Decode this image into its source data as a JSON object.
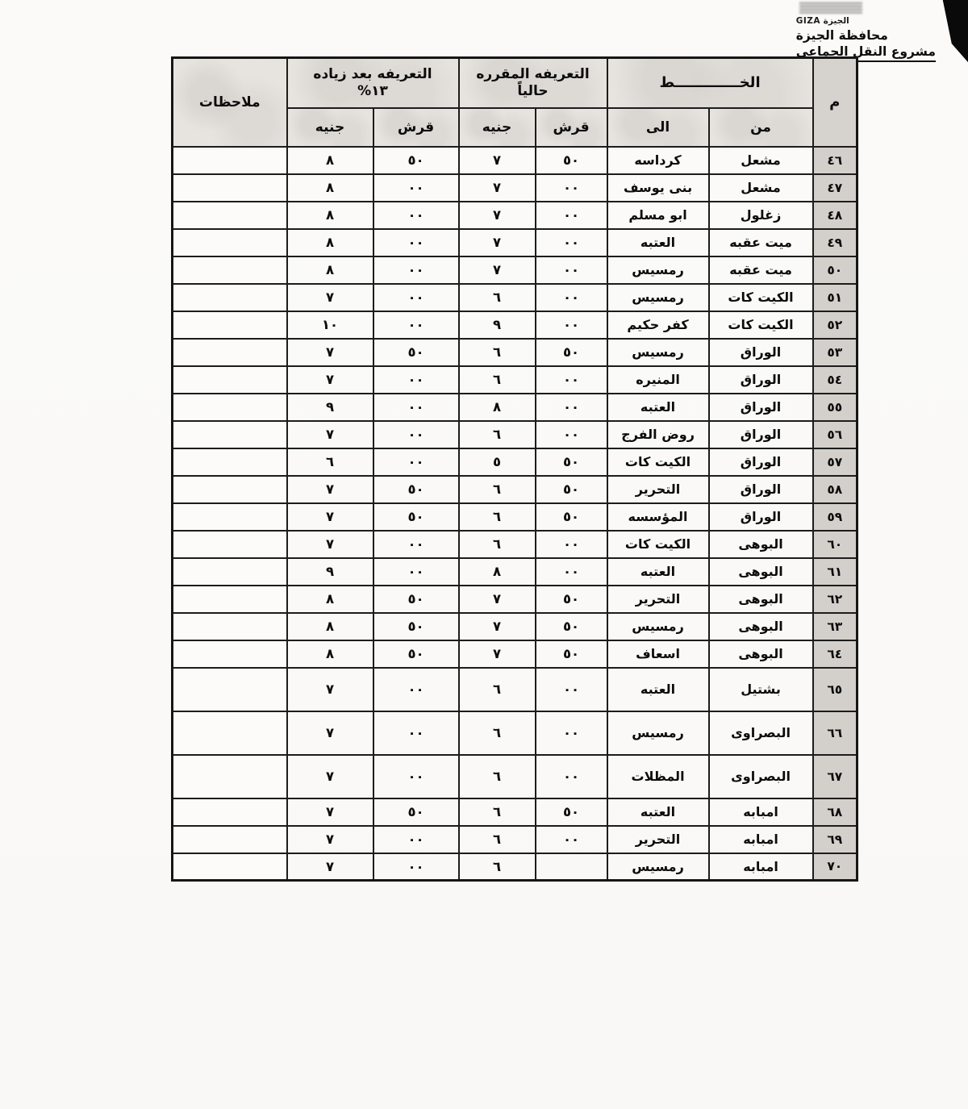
{
  "page": {
    "stamp_label": "الجيزة GIZA",
    "org_title": "محافظة الجيزة",
    "project_title": "مشروع النقل الجماعى"
  },
  "colors": {
    "paper": "#fbfaf8",
    "index_column_bg": "#d3d0cc",
    "header_bg": "#e7e4e0",
    "border": "#1c1c1c",
    "corner_artifact": "#0a0a0a"
  },
  "table": {
    "headers": {
      "num": "م",
      "line_group": "الخـــــــــــــط",
      "from": "من",
      "to": "الى",
      "current_group_line1": "التعريفه المقرره",
      "current_group_line2": "حالياً",
      "increased_group_line1": "التعريفه بعد زياده",
      "increased_group_line2": "١٣%",
      "girsh": "قرش",
      "gineh": "جنيه",
      "notes": "ملاحظات"
    },
    "rows": [
      {
        "num": "٤٦",
        "from": "مشعل",
        "to": "كرداسه",
        "cur_girsh": "٥٠",
        "cur_gineh": "٧",
        "new_girsh": "٥٠",
        "new_gineh": "٨",
        "notes": ""
      },
      {
        "num": "٤٧",
        "from": "مشعل",
        "to": "بنى يوسف",
        "cur_girsh": "٠٠",
        "cur_gineh": "٧",
        "new_girsh": "٠٠",
        "new_gineh": "٨",
        "notes": ""
      },
      {
        "num": "٤٨",
        "from": "زغلول",
        "to": "ابو مسلم",
        "cur_girsh": "٠٠",
        "cur_gineh": "٧",
        "new_girsh": "٠٠",
        "new_gineh": "٨",
        "notes": ""
      },
      {
        "num": "٤٩",
        "from": "ميت عقبه",
        "to": "العتبه",
        "cur_girsh": "٠٠",
        "cur_gineh": "٧",
        "new_girsh": "٠٠",
        "new_gineh": "٨",
        "notes": ""
      },
      {
        "num": "٥٠",
        "from": "ميت عقبه",
        "to": "رمسيس",
        "cur_girsh": "٠٠",
        "cur_gineh": "٧",
        "new_girsh": "٠٠",
        "new_gineh": "٨",
        "notes": ""
      },
      {
        "num": "٥١",
        "from": "الكيت كات",
        "to": "رمسيس",
        "cur_girsh": "٠٠",
        "cur_gineh": "٦",
        "new_girsh": "٠٠",
        "new_gineh": "٧",
        "notes": ""
      },
      {
        "num": "٥٢",
        "from": "الكيت كات",
        "to": "كفر حكيم",
        "cur_girsh": "٠٠",
        "cur_gineh": "٩",
        "new_girsh": "٠٠",
        "new_gineh": "١٠",
        "notes": ""
      },
      {
        "num": "٥٣",
        "from": "الوراق",
        "to": "رمسيس",
        "cur_girsh": "٥٠",
        "cur_gineh": "٦",
        "new_girsh": "٥٠",
        "new_gineh": "٧",
        "notes": ""
      },
      {
        "num": "٥٤",
        "from": "الوراق",
        "to": "المنيره",
        "cur_girsh": "٠٠",
        "cur_gineh": "٦",
        "new_girsh": "٠٠",
        "new_gineh": "٧",
        "notes": ""
      },
      {
        "num": "٥٥",
        "from": "الوراق",
        "to": "العتبه",
        "cur_girsh": "٠٠",
        "cur_gineh": "٨",
        "new_girsh": "٠٠",
        "new_gineh": "٩",
        "notes": ""
      },
      {
        "num": "٥٦",
        "from": "الوراق",
        "to": "روض الفرج",
        "cur_girsh": "٠٠",
        "cur_gineh": "٦",
        "new_girsh": "٠٠",
        "new_gineh": "٧",
        "notes": ""
      },
      {
        "num": "٥٧",
        "from": "الوراق",
        "to": "الكيت كات",
        "cur_girsh": "٥٠",
        "cur_gineh": "٥",
        "new_girsh": "٠٠",
        "new_gineh": "٦",
        "notes": ""
      },
      {
        "num": "٥٨",
        "from": "الوراق",
        "to": "التحرير",
        "cur_girsh": "٥٠",
        "cur_gineh": "٦",
        "new_girsh": "٥٠",
        "new_gineh": "٧",
        "notes": ""
      },
      {
        "num": "٥٩",
        "from": "الوراق",
        "to": "المؤسسه",
        "cur_girsh": "٥٠",
        "cur_gineh": "٦",
        "new_girsh": "٥٠",
        "new_gineh": "٧",
        "notes": ""
      },
      {
        "num": "٦٠",
        "from": "البوهى",
        "to": "الكيت كات",
        "cur_girsh": "٠٠",
        "cur_gineh": "٦",
        "new_girsh": "٠٠",
        "new_gineh": "٧",
        "notes": ""
      },
      {
        "num": "٦١",
        "from": "البوهى",
        "to": "العتبه",
        "cur_girsh": "٠٠",
        "cur_gineh": "٨",
        "new_girsh": "٠٠",
        "new_gineh": "٩",
        "notes": ""
      },
      {
        "num": "٦٢",
        "from": "البوهى",
        "to": "التحرير",
        "cur_girsh": "٥٠",
        "cur_gineh": "٧",
        "new_girsh": "٥٠",
        "new_gineh": "٨",
        "notes": ""
      },
      {
        "num": "٦٣",
        "from": "البوهى",
        "to": "رمسيس",
        "cur_girsh": "٥٠",
        "cur_gineh": "٧",
        "new_girsh": "٥٠",
        "new_gineh": "٨",
        "notes": ""
      },
      {
        "num": "٦٤",
        "from": "البوهى",
        "to": "اسعاف",
        "cur_girsh": "٥٠",
        "cur_gineh": "٧",
        "new_girsh": "٥٠",
        "new_gineh": "٨",
        "notes": ""
      },
      {
        "num": "٦٥",
        "from": "بشتيل",
        "to": "العتبه",
        "cur_girsh": "٠٠",
        "cur_gineh": "٦",
        "new_girsh": "٠٠",
        "new_gineh": "٧",
        "notes": "",
        "tall": true
      },
      {
        "num": "٦٦",
        "from": "البصراوى",
        "to": "رمسيس",
        "cur_girsh": "٠٠",
        "cur_gineh": "٦",
        "new_girsh": "٠٠",
        "new_gineh": "٧",
        "notes": "",
        "tall": true
      },
      {
        "num": "٦٧",
        "from": "البصراوى",
        "to": "المظلات",
        "cur_girsh": "٠٠",
        "cur_gineh": "٦",
        "new_girsh": "٠٠",
        "new_gineh": "٧",
        "notes": "",
        "tall": true
      },
      {
        "num": "٦٨",
        "from": "امبابه",
        "to": "العتبه",
        "cur_girsh": "٥٠",
        "cur_gineh": "٦",
        "new_girsh": "٥٠",
        "new_gineh": "٧",
        "notes": ""
      },
      {
        "num": "٦٩",
        "from": "امبابه",
        "to": "التحرير",
        "cur_girsh": "٠٠",
        "cur_gineh": "٦",
        "new_girsh": "٠٠",
        "new_gineh": "٧",
        "notes": ""
      },
      {
        "num": "٧٠",
        "from": "امبابه",
        "to": "رمسيس",
        "cur_girsh": "",
        "cur_gineh": "٦",
        "new_girsh": "٠٠",
        "new_gineh": "٧",
        "notes": ""
      }
    ]
  }
}
